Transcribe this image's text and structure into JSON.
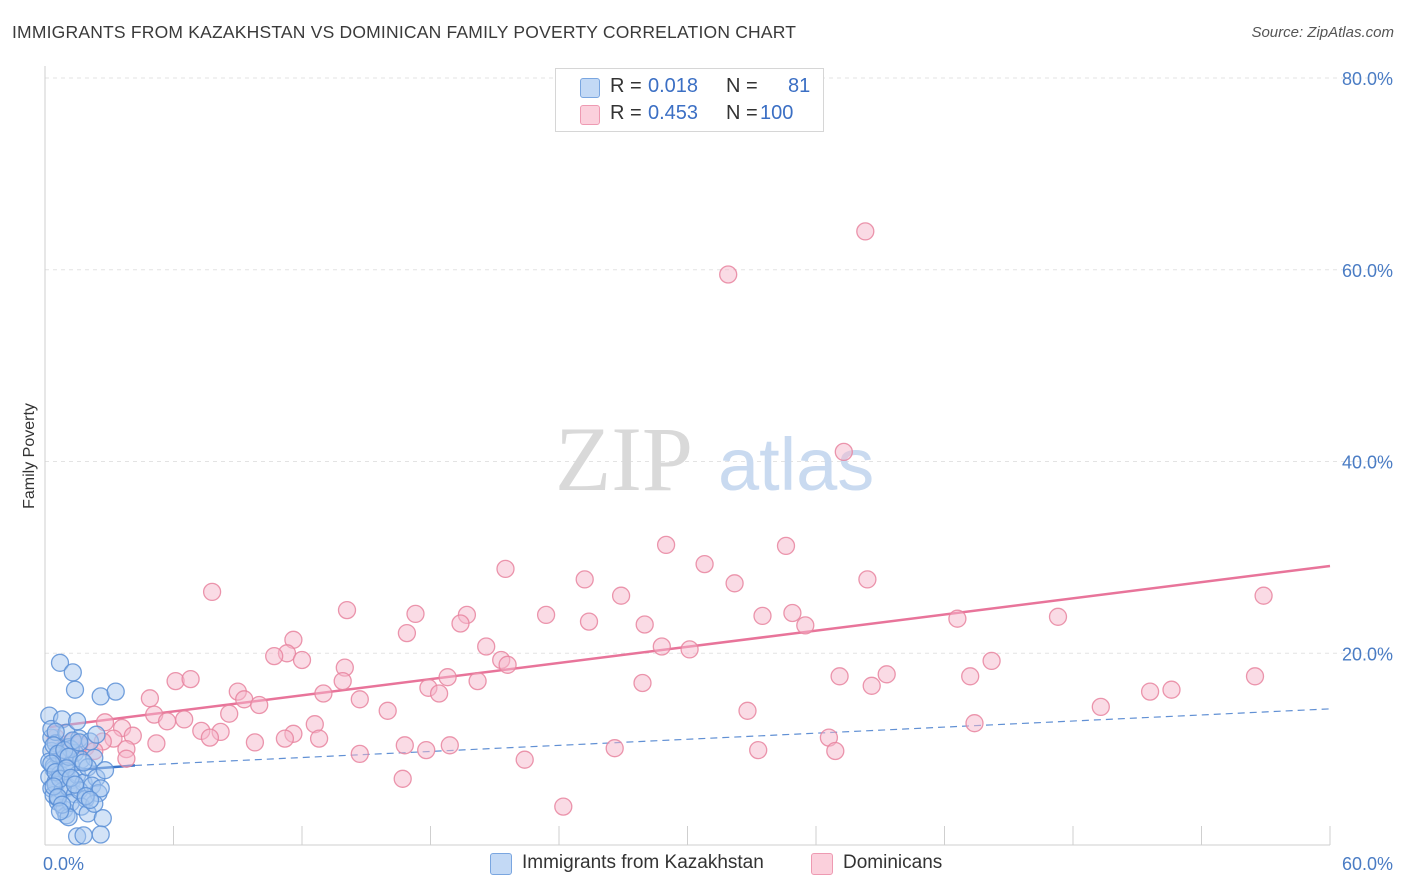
{
  "title": "IMMIGRANTS FROM KAZAKHSTAN VS DOMINICAN FAMILY POVERTY CORRELATION CHART",
  "source": "Source: ZipAtlas.com",
  "watermark": {
    "zip": "ZIP",
    "atlas": "atlas"
  },
  "legend": {
    "r_label": "R =",
    "n_label": "N =",
    "series1": {
      "r": "0.018",
      "n": "81"
    },
    "series2": {
      "r": "0.453",
      "n": "100"
    }
  },
  "colors": {
    "blue_fill": "#a8c8f0",
    "blue_stroke": "#5b8fd6",
    "blue_line": "#3a74c9",
    "pink_fill": "#f6b8cb",
    "pink_stroke": "#e8849f",
    "pink_line": "#e8749a",
    "tick_text": "#4a7cc4"
  },
  "chart_data": {
    "type": "scatter",
    "title": "IMMIGRANTS FROM KAZAKHSTAN VS DOMINICAN FAMILY POVERTY CORRELATION CHART",
    "xlabel": "",
    "ylabel": "Family Poverty",
    "xlim": [
      0,
      60
    ],
    "ylim": [
      0,
      80
    ],
    "x_tick_labels": [
      "0.0%",
      "60.0%"
    ],
    "y_ticks": [
      20,
      40,
      60,
      80
    ],
    "y_tick_labels": [
      "20.0%",
      "40.0%",
      "60.0%",
      "80.0%"
    ],
    "grid": true,
    "legend_position": "top-center",
    "series": [
      {
        "name": "Immigrants from Kazakhstan",
        "R": 0.018,
        "N": 81,
        "trend_solid": [
          [
            0.1,
            7.6
          ],
          [
            4.2,
            8.3
          ]
        ],
        "trend_dashed": [
          [
            4.2,
            8.3
          ],
          [
            60,
            14.2
          ]
        ],
        "points": [
          [
            0.2,
            13.5
          ],
          [
            0.3,
            11.2
          ],
          [
            0.3,
            9.8
          ],
          [
            0.2,
            8.7
          ],
          [
            0.4,
            7.9
          ],
          [
            0.2,
            7.1
          ],
          [
            0.5,
            6.6
          ],
          [
            0.3,
            5.9
          ],
          [
            0.4,
            5.2
          ],
          [
            0.6,
            4.5
          ],
          [
            0.3,
            12.1
          ],
          [
            0.5,
            10.6
          ],
          [
            0.6,
            9.3
          ],
          [
            0.4,
            8.2
          ],
          [
            0.7,
            7.4
          ],
          [
            0.5,
            6.3
          ],
          [
            0.8,
            5.6
          ],
          [
            0.6,
            4.9
          ],
          [
            0.9,
            3.7
          ],
          [
            1.0,
            3.1
          ],
          [
            0.8,
            13.1
          ],
          [
            1.0,
            11.7
          ],
          [
            1.1,
            10.2
          ],
          [
            0.9,
            9.0
          ],
          [
            1.2,
            8.4
          ],
          [
            1.0,
            7.7
          ],
          [
            1.3,
            6.8
          ],
          [
            1.1,
            6.0
          ],
          [
            1.4,
            5.3
          ],
          [
            1.2,
            4.4
          ],
          [
            1.5,
            12.9
          ],
          [
            1.6,
            11.1
          ],
          [
            1.4,
            9.6
          ],
          [
            1.7,
            8.9
          ],
          [
            1.5,
            7.3
          ],
          [
            1.8,
            6.5
          ],
          [
            1.6,
            5.7
          ],
          [
            1.9,
            4.8
          ],
          [
            1.7,
            4.0
          ],
          [
            2.0,
            3.3
          ],
          [
            0.7,
            19.0
          ],
          [
            1.3,
            18.0
          ],
          [
            1.4,
            16.2
          ],
          [
            2.6,
            15.5
          ],
          [
            3.3,
            16.0
          ],
          [
            2.7,
            2.8
          ],
          [
            1.5,
            0.9
          ],
          [
            1.8,
            1.0
          ],
          [
            2.6,
            1.1
          ],
          [
            1.1,
            2.9
          ],
          [
            2.1,
            10.8
          ],
          [
            2.3,
            9.1
          ],
          [
            2.0,
            8.1
          ],
          [
            2.4,
            7.0
          ],
          [
            2.2,
            6.2
          ],
          [
            2.5,
            5.4
          ],
          [
            2.3,
            4.3
          ],
          [
            2.6,
            5.9
          ],
          [
            2.8,
            7.8
          ],
          [
            1.2,
            10.0
          ],
          [
            0.5,
            11.8
          ],
          [
            0.4,
            10.4
          ],
          [
            0.6,
            9.5
          ],
          [
            0.3,
            8.5
          ],
          [
            0.5,
            7.6
          ],
          [
            0.7,
            6.9
          ],
          [
            0.4,
            6.1
          ],
          [
            0.6,
            5.0
          ],
          [
            0.8,
            4.2
          ],
          [
            0.9,
            9.9
          ],
          [
            1.3,
            10.9
          ],
          [
            1.1,
            9.2
          ],
          [
            1.0,
            8.0
          ],
          [
            1.2,
            7.0
          ],
          [
            1.4,
            6.3
          ],
          [
            1.6,
            10.7
          ],
          [
            1.8,
            8.6
          ],
          [
            0.7,
            3.5
          ],
          [
            1.9,
            5.1
          ],
          [
            2.1,
            4.7
          ],
          [
            2.4,
            11.5
          ]
        ]
      },
      {
        "name": "Dominicans",
        "R": 0.453,
        "N": 100,
        "trend_solid": [
          [
            0.2,
            12.3
          ],
          [
            60,
            29.1
          ]
        ],
        "points": [
          [
            38.3,
            64.0
          ],
          [
            31.9,
            59.5
          ],
          [
            37.3,
            41.0
          ],
          [
            29.0,
            31.3
          ],
          [
            34.6,
            31.2
          ],
          [
            21.5,
            28.8
          ],
          [
            30.8,
            29.3
          ],
          [
            25.2,
            27.7
          ],
          [
            32.2,
            27.3
          ],
          [
            38.4,
            27.7
          ],
          [
            56.9,
            26.0
          ],
          [
            26.9,
            26.0
          ],
          [
            7.8,
            26.4
          ],
          [
            14.1,
            24.5
          ],
          [
            17.3,
            24.1
          ],
          [
            19.7,
            24.0
          ],
          [
            23.4,
            24.0
          ],
          [
            33.5,
            23.9
          ],
          [
            34.9,
            24.2
          ],
          [
            42.6,
            23.6
          ],
          [
            47.3,
            23.8
          ],
          [
            19.4,
            23.1
          ],
          [
            25.4,
            23.3
          ],
          [
            28.0,
            23.0
          ],
          [
            35.5,
            22.9
          ],
          [
            16.9,
            22.1
          ],
          [
            20.6,
            20.7
          ],
          [
            28.8,
            20.7
          ],
          [
            30.1,
            20.4
          ],
          [
            11.6,
            21.4
          ],
          [
            11.3,
            20.0
          ],
          [
            10.7,
            19.7
          ],
          [
            12.0,
            19.3
          ],
          [
            21.3,
            19.3
          ],
          [
            21.6,
            18.8
          ],
          [
            44.2,
            19.2
          ],
          [
            14.0,
            18.5
          ],
          [
            18.8,
            17.5
          ],
          [
            13.9,
            17.1
          ],
          [
            20.2,
            17.1
          ],
          [
            6.1,
            17.1
          ],
          [
            6.8,
            17.3
          ],
          [
            27.9,
            16.9
          ],
          [
            37.1,
            17.6
          ],
          [
            39.3,
            17.8
          ],
          [
            43.2,
            17.6
          ],
          [
            38.6,
            16.6
          ],
          [
            56.5,
            17.6
          ],
          [
            17.9,
            16.4
          ],
          [
            18.4,
            15.8
          ],
          [
            9.0,
            16.0
          ],
          [
            13.0,
            15.8
          ],
          [
            51.6,
            16.0
          ],
          [
            52.6,
            16.2
          ],
          [
            4.9,
            15.3
          ],
          [
            9.3,
            15.2
          ],
          [
            10.0,
            14.6
          ],
          [
            14.7,
            15.2
          ],
          [
            16.0,
            14.0
          ],
          [
            32.8,
            14.0
          ],
          [
            49.3,
            14.4
          ],
          [
            5.1,
            13.6
          ],
          [
            6.5,
            13.1
          ],
          [
            8.6,
            13.7
          ],
          [
            5.7,
            12.9
          ],
          [
            2.8,
            12.8
          ],
          [
            12.6,
            12.6
          ],
          [
            43.4,
            12.7
          ],
          [
            3.6,
            12.2
          ],
          [
            7.3,
            11.9
          ],
          [
            11.6,
            11.6
          ],
          [
            12.8,
            11.1
          ],
          [
            4.1,
            11.4
          ],
          [
            8.2,
            11.8
          ],
          [
            3.2,
            11.1
          ],
          [
            7.7,
            11.2
          ],
          [
            11.2,
            11.1
          ],
          [
            1.3,
            10.8
          ],
          [
            2.7,
            10.8
          ],
          [
            5.2,
            10.6
          ],
          [
            9.8,
            10.7
          ],
          [
            1.9,
            10.2
          ],
          [
            3.8,
            10.0
          ],
          [
            0.8,
            10.0
          ],
          [
            1.0,
            9.5
          ],
          [
            2.3,
            9.8
          ],
          [
            16.8,
            10.4
          ],
          [
            17.8,
            9.9
          ],
          [
            18.9,
            10.4
          ],
          [
            26.6,
            10.1
          ],
          [
            33.3,
            9.9
          ],
          [
            14.7,
            9.5
          ],
          [
            22.4,
            8.9
          ],
          [
            16.7,
            6.9
          ],
          [
            24.2,
            4.0
          ],
          [
            36.6,
            11.2
          ],
          [
            36.9,
            9.8
          ],
          [
            0.5,
            11.2
          ],
          [
            1.6,
            10.5
          ],
          [
            3.8,
            9.0
          ]
        ]
      }
    ]
  },
  "bottom_legend": {
    "item1": "Immigrants from Kazakhstan",
    "item2": "Dominicans"
  }
}
